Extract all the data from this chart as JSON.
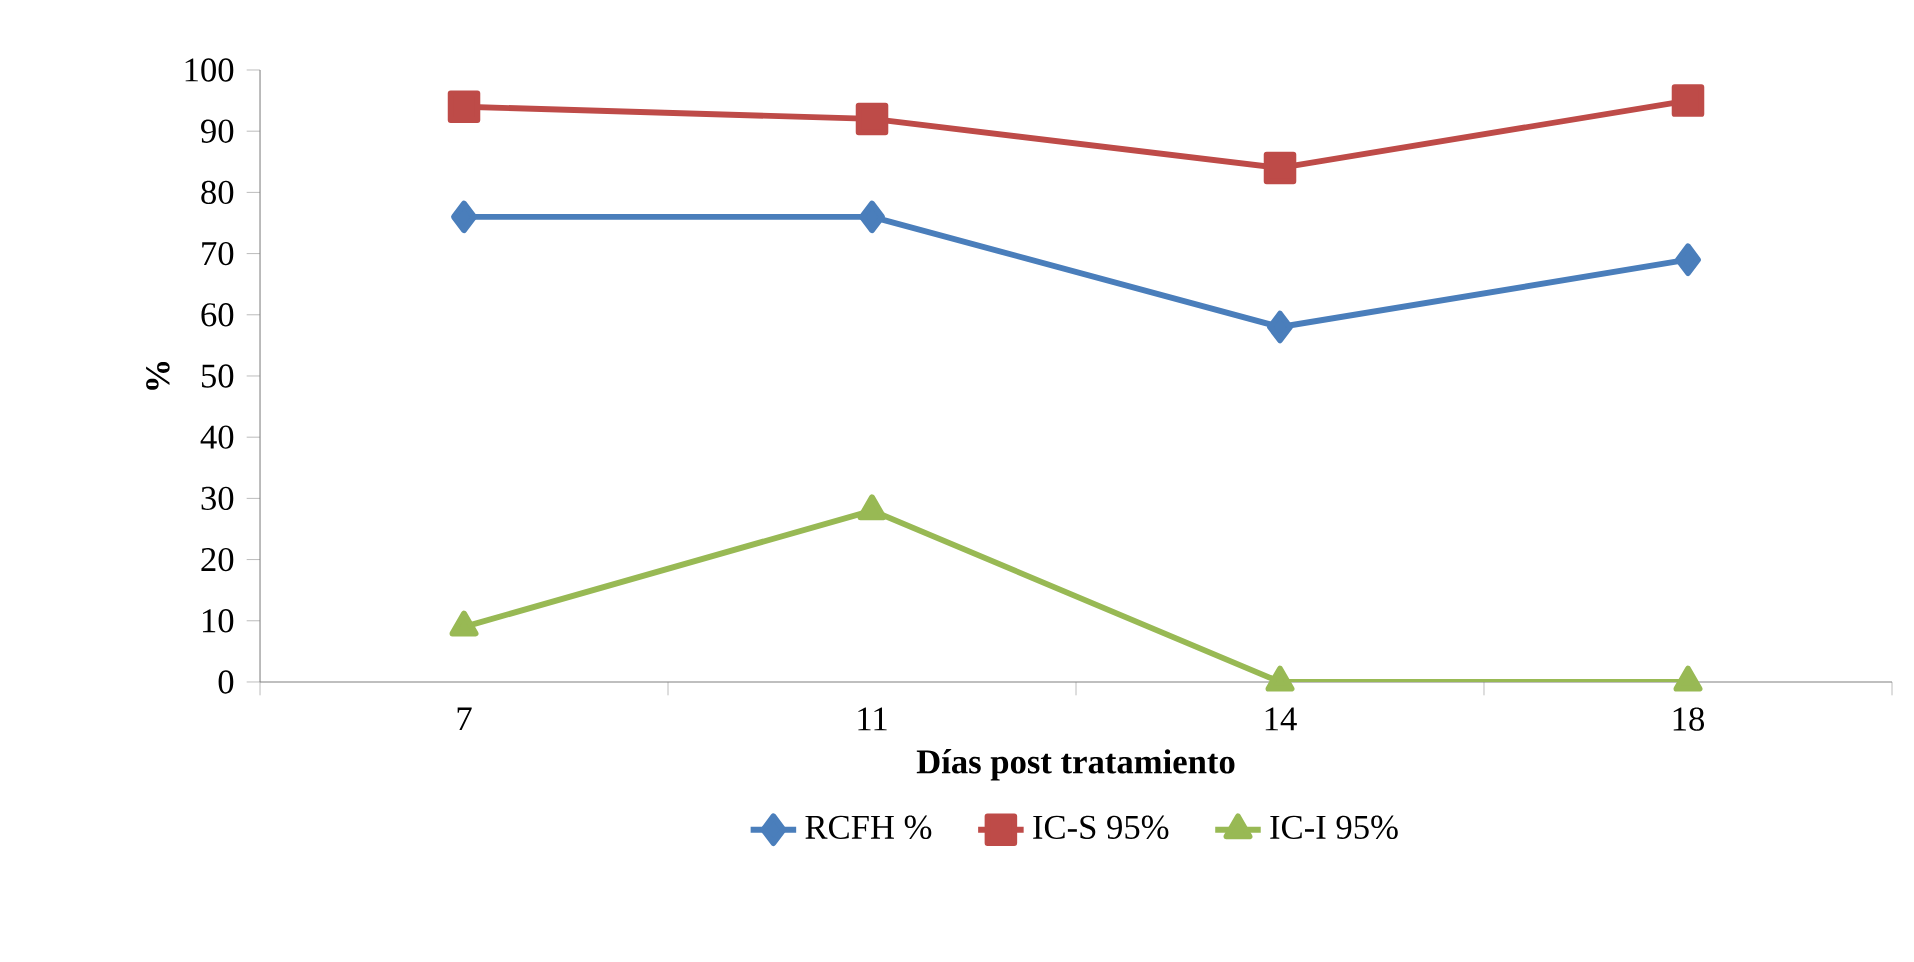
{
  "chart_data": {
    "type": "line",
    "xlabel": "Días post tratamiento",
    "ylabel": "%",
    "categories": [
      "7",
      "11",
      "14",
      "18"
    ],
    "series": [
      {
        "name": "RCFH %",
        "color": "#4a7ebb",
        "values": [
          76,
          76,
          58,
          69
        ],
        "marker": "diamond"
      },
      {
        "name": "IC-S 95%",
        "color": "#be4b48",
        "values": [
          94,
          92,
          84,
          95
        ],
        "marker": "square"
      },
      {
        "name": "IC-I 95%",
        "color": "#98b954",
        "values": [
          9,
          28,
          0,
          0
        ],
        "marker": "triangle"
      }
    ],
    "ylim": [
      0,
      100
    ],
    "yticks": [
      0,
      10,
      20,
      30,
      40,
      50,
      60,
      70,
      80,
      90,
      100
    ],
    "legend": "bottom",
    "grid": false,
    "line_style": "solid"
  }
}
